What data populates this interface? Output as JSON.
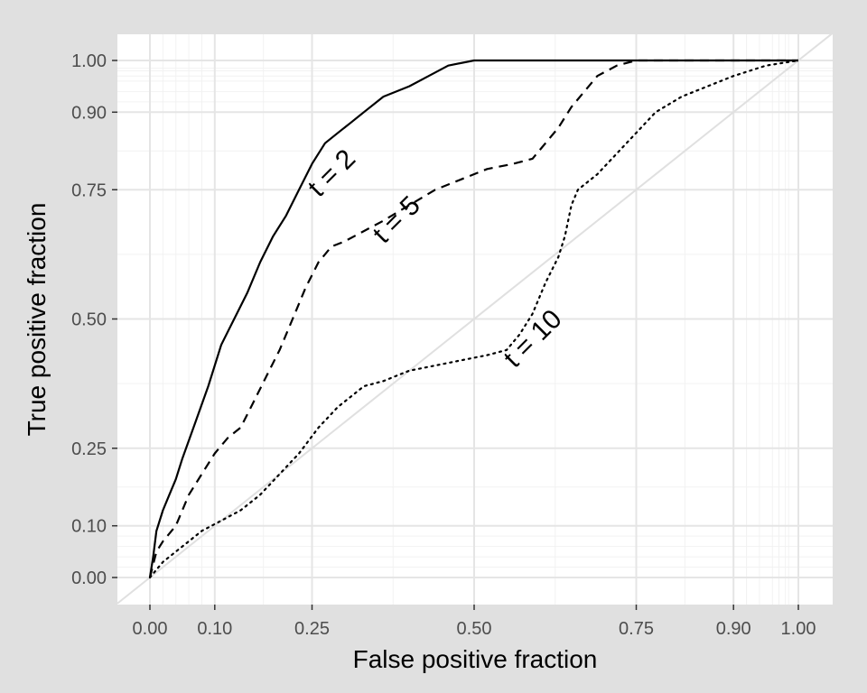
{
  "chart_data": {
    "type": "line",
    "xlabel": "False positive fraction",
    "ylabel": "True positive fraction",
    "xlim": [
      0,
      1
    ],
    "ylim": [
      0,
      1
    ],
    "grid": true,
    "x_ticks": [
      {
        "value": 0.0,
        "label": "0.00"
      },
      {
        "value": 0.1,
        "label": "0.10"
      },
      {
        "value": 0.25,
        "label": "0.25"
      },
      {
        "value": 0.5,
        "label": "0.50"
      },
      {
        "value": 0.75,
        "label": "0.75"
      },
      {
        "value": 0.9,
        "label": "0.90"
      },
      {
        "value": 1.0,
        "label": "1.00"
      }
    ],
    "y_ticks": [
      {
        "value": 0.0,
        "label": "0.00"
      },
      {
        "value": 0.1,
        "label": "0.10"
      },
      {
        "value": 0.25,
        "label": "0.25"
      },
      {
        "value": 0.5,
        "label": "0.50"
      },
      {
        "value": 0.75,
        "label": "0.75"
      },
      {
        "value": 0.9,
        "label": "0.90"
      },
      {
        "value": 1.0,
        "label": "1.00"
      }
    ],
    "series": [
      {
        "name": "t = 2",
        "style": "solid",
        "x": [
          0,
          0.005,
          0.01,
          0.02,
          0.03,
          0.04,
          0.05,
          0.07,
          0.09,
          0.11,
          0.13,
          0.15,
          0.17,
          0.19,
          0.21,
          0.23,
          0.25,
          0.27,
          0.29,
          0.31,
          0.33,
          0.36,
          0.4,
          0.43,
          0.46,
          0.5,
          0.52,
          0.6,
          0.7,
          0.8,
          0.9,
          1.0
        ],
        "y": [
          0,
          0.04,
          0.09,
          0.13,
          0.16,
          0.19,
          0.23,
          0.3,
          0.37,
          0.45,
          0.5,
          0.55,
          0.61,
          0.66,
          0.7,
          0.75,
          0.8,
          0.84,
          0.86,
          0.88,
          0.9,
          0.93,
          0.95,
          0.97,
          0.99,
          1.0,
          1.0,
          1.0,
          1.0,
          1.0,
          1.0,
          1.0
        ]
      },
      {
        "name": "t = 5",
        "style": "dashed",
        "x": [
          0,
          0.01,
          0.02,
          0.04,
          0.06,
          0.08,
          0.1,
          0.12,
          0.14,
          0.16,
          0.18,
          0.2,
          0.22,
          0.24,
          0.26,
          0.28,
          0.3,
          0.33,
          0.36,
          0.4,
          0.44,
          0.48,
          0.52,
          0.56,
          0.59,
          0.61,
          0.63,
          0.65,
          0.67,
          0.69,
          0.72,
          0.75,
          0.8,
          0.9,
          1.0
        ],
        "y": [
          0,
          0.05,
          0.07,
          0.1,
          0.16,
          0.2,
          0.24,
          0.27,
          0.29,
          0.34,
          0.39,
          0.44,
          0.5,
          0.56,
          0.61,
          0.64,
          0.65,
          0.67,
          0.69,
          0.72,
          0.75,
          0.77,
          0.79,
          0.8,
          0.81,
          0.84,
          0.87,
          0.91,
          0.94,
          0.97,
          0.99,
          1.0,
          1.0,
          1.0,
          1.0
        ]
      },
      {
        "name": "t = 10",
        "style": "dotted",
        "x": [
          0,
          0.02,
          0.05,
          0.08,
          0.11,
          0.14,
          0.17,
          0.2,
          0.23,
          0.26,
          0.29,
          0.31,
          0.33,
          0.36,
          0.4,
          0.44,
          0.48,
          0.52,
          0.55,
          0.57,
          0.59,
          0.61,
          0.63,
          0.64,
          0.65,
          0.66,
          0.67,
          0.69,
          0.72,
          0.75,
          0.78,
          0.82,
          0.86,
          0.9,
          0.95,
          1.0
        ],
        "y": [
          0,
          0.03,
          0.06,
          0.09,
          0.11,
          0.13,
          0.16,
          0.2,
          0.24,
          0.29,
          0.33,
          0.35,
          0.37,
          0.38,
          0.4,
          0.41,
          0.42,
          0.43,
          0.44,
          0.47,
          0.51,
          0.57,
          0.62,
          0.66,
          0.72,
          0.75,
          0.76,
          0.78,
          0.82,
          0.86,
          0.9,
          0.93,
          0.95,
          0.97,
          0.99,
          1.0
        ]
      }
    ],
    "annotations": [
      {
        "text": "t = 2",
        "x": 0.29,
        "y": 0.77,
        "angle": -45
      },
      {
        "text": "t = 5",
        "x": 0.39,
        "y": 0.68,
        "angle": -45
      },
      {
        "text": "t = 10",
        "x": 0.6,
        "y": 0.45,
        "angle": -45
      }
    ],
    "reference_line": {
      "x": [
        0,
        1
      ],
      "y": [
        0,
        1
      ],
      "color": "#e0e0e0"
    },
    "colors": {
      "background": "#e0e0e0",
      "panel": "#ffffff",
      "grid_major": "#e5e5e5",
      "grid_minor": "#f2f2f2",
      "curve": "#000000",
      "tick_text": "#4d4d4d"
    }
  }
}
